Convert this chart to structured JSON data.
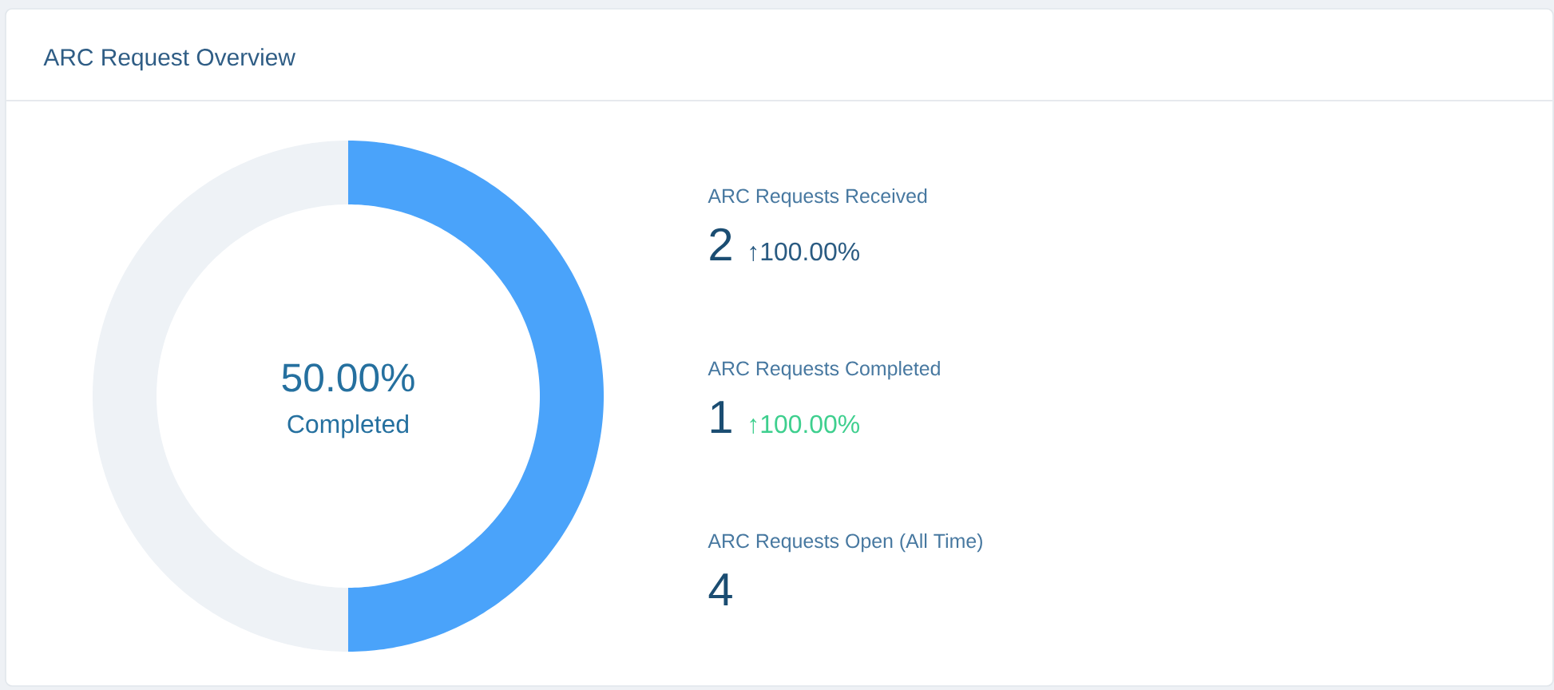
{
  "chart_data": [
    {
      "type": "donut",
      "title": "ARC Request Overview",
      "categories": [
        "Completed",
        null
      ],
      "values": [
        50,
        50
      ],
      "colors": [
        "#4aa3fa",
        "#eef2f6"
      ],
      "value_labels": [
        "50.00%",
        null
      ]
    },
    {
      "type": "other",
      "categories": [
        "ARC Requests Received",
        "ARC Requests Completed",
        "ARC Requests Open (All Time)"
      ],
      "values": [
        2,
        1,
        4
      ],
      "data_labels": true,
      "annotations": [
        "↑100.00%",
        "↑100.00%"
      ]
    }
  ]
}
